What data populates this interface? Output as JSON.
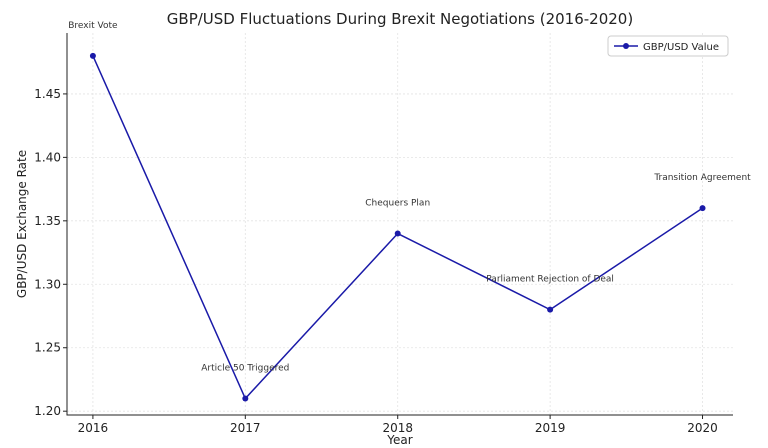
{
  "chart_data": {
    "type": "line",
    "title": "GBP/USD Fluctuations During Brexit Negotiations (2016-2020)",
    "xlabel": "Year",
    "ylabel": "GBP/USD Exchange Rate",
    "x": [
      2016,
      2017,
      2018,
      2019,
      2020
    ],
    "x_tick_labels": [
      "2016",
      "2017",
      "2018",
      "2019",
      "2020"
    ],
    "xlim": [
      2015.83,
      2020.2
    ],
    "ylim": [
      1.197,
      1.498
    ],
    "y_ticks": [
      1.2,
      1.25,
      1.3,
      1.35,
      1.4,
      1.45
    ],
    "y_tick_labels": [
      "1.20",
      "1.25",
      "1.30",
      "1.35",
      "1.40",
      "1.45"
    ],
    "grid": true,
    "legend_position": "top-right",
    "series": [
      {
        "name": "GBP/USD Value",
        "color": "#1a1aa8",
        "marker": "circle",
        "values": [
          1.48,
          1.21,
          1.34,
          1.28,
          1.36
        ]
      }
    ],
    "annotations": [
      {
        "text": "Brexit Vote",
        "x": 2016,
        "y": 1.48
      },
      {
        "text": "Article 50 Triggered",
        "x": 2017,
        "y": 1.21
      },
      {
        "text": "Chequers Plan",
        "x": 2018,
        "y": 1.34
      },
      {
        "text": "Parliament Rejection of Deal",
        "x": 2019,
        "y": 1.28
      },
      {
        "text": "Transition Agreement",
        "x": 2020,
        "y": 1.36
      }
    ]
  }
}
